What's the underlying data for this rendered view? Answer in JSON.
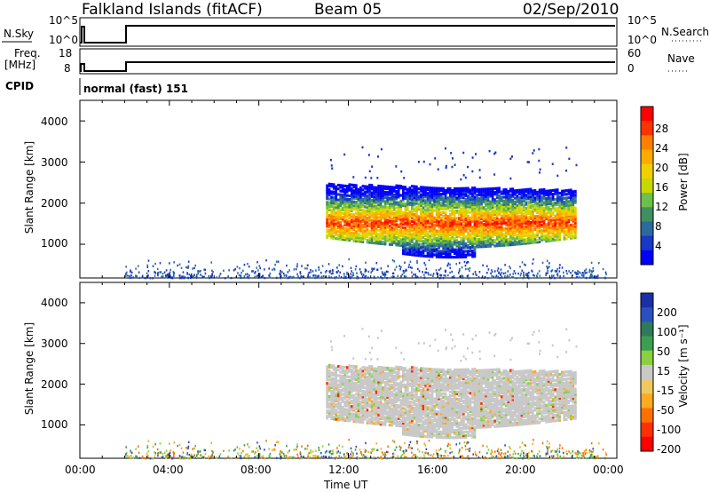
{
  "header": {
    "station": "Falkland Islands (fitACF)",
    "beam": "Beam 05",
    "date": "02/Sep/2010"
  },
  "strip_nsky": {
    "left_label": "N.Sky",
    "left_ticks": [
      "10^5",
      "10^0"
    ],
    "right_ticks": [
      "10^5",
      "10^0"
    ],
    "right_label": "N.Search"
  },
  "strip_freq": {
    "left_label_1": "Freq.",
    "left_label_2": "[MHz]",
    "left_ticks": [
      "18",
      "8"
    ],
    "right_ticks": [
      "60",
      "0"
    ],
    "right_label": "Nave"
  },
  "cpid": {
    "label": "CPID",
    "text": "normal (fast) 151"
  },
  "x_axis": {
    "title": "Time UT",
    "tick_labels": [
      "00:00",
      "04:00",
      "08:00",
      "12:00",
      "16:00",
      "20:00",
      "00:00"
    ]
  },
  "power_panel": {
    "y_title": "Slant Range [km]",
    "y_ticks": [
      "4000",
      "3000",
      "2000",
      "1000"
    ],
    "colorbar_title": "Power [dB]",
    "colorbar_labels": [
      "28",
      "24",
      "20",
      "16",
      "12",
      "8",
      "4"
    ],
    "colors": [
      "#ff0000",
      "#ff3300",
      "#ff7f00",
      "#ffaa00",
      "#f0d000",
      "#c8d800",
      "#6cbf4a",
      "#3f9060",
      "#2a6aa0",
      "#1838c8",
      "#0000ff"
    ]
  },
  "velocity_panel": {
    "y_title": "Velocity [m s⁻¹]",
    "y_axis_title": "Slant Range [km]",
    "y_ticks": [
      "4000",
      "3000",
      "2000",
      "1000"
    ],
    "colorbar_labels": [
      "200",
      "100",
      "50",
      "15",
      "-15",
      "-50",
      "-100",
      "-200"
    ],
    "colors": [
      "#1a2fa8",
      "#2a4fc0",
      "#2e7a5a",
      "#3aa050",
      "#8ad040",
      "#c8c8c8",
      "#f0c860",
      "#ffaa20",
      "#ff7000",
      "#ff3000",
      "#ff0000"
    ]
  },
  "chart_data": [
    {
      "type": "heatmap",
      "title": "Falkland Islands (fitACF) Beam 05 02/Sep/2010",
      "xlabel": "Time UT",
      "ylabel": "Slant Range [km]",
      "xlim": [
        "00:00",
        "24:00"
      ],
      "ylim": [
        180,
        4500
      ],
      "colorbar": "Power [dB]",
      "colorbar_range": [
        0,
        32
      ],
      "features": [
        {
          "description": "main echo band",
          "time_start": "11:00",
          "time_end": "22:10",
          "range_low": 1200,
          "range_high": 2500,
          "peak_power_db": 28
        },
        {
          "description": "near-range scatter",
          "time_start": "02:00",
          "time_end": "23:30",
          "range_low": 200,
          "range_high": 700,
          "peak_power_db": 8
        }
      ]
    },
    {
      "type": "heatmap",
      "xlabel": "Time UT",
      "ylabel": "Slant Range [km]",
      "xlim": [
        "00:00",
        "24:00"
      ],
      "ylim": [
        180,
        4500
      ],
      "colorbar": "Velocity [m s⁻¹]",
      "colorbar_range": [
        -250,
        250
      ],
      "features": [
        {
          "description": "ground scatter (grey)",
          "time_start": "11:00",
          "time_end": "22:10",
          "range_low": 700,
          "range_high": 2500,
          "velocity_ms": 0
        }
      ]
    }
  ]
}
